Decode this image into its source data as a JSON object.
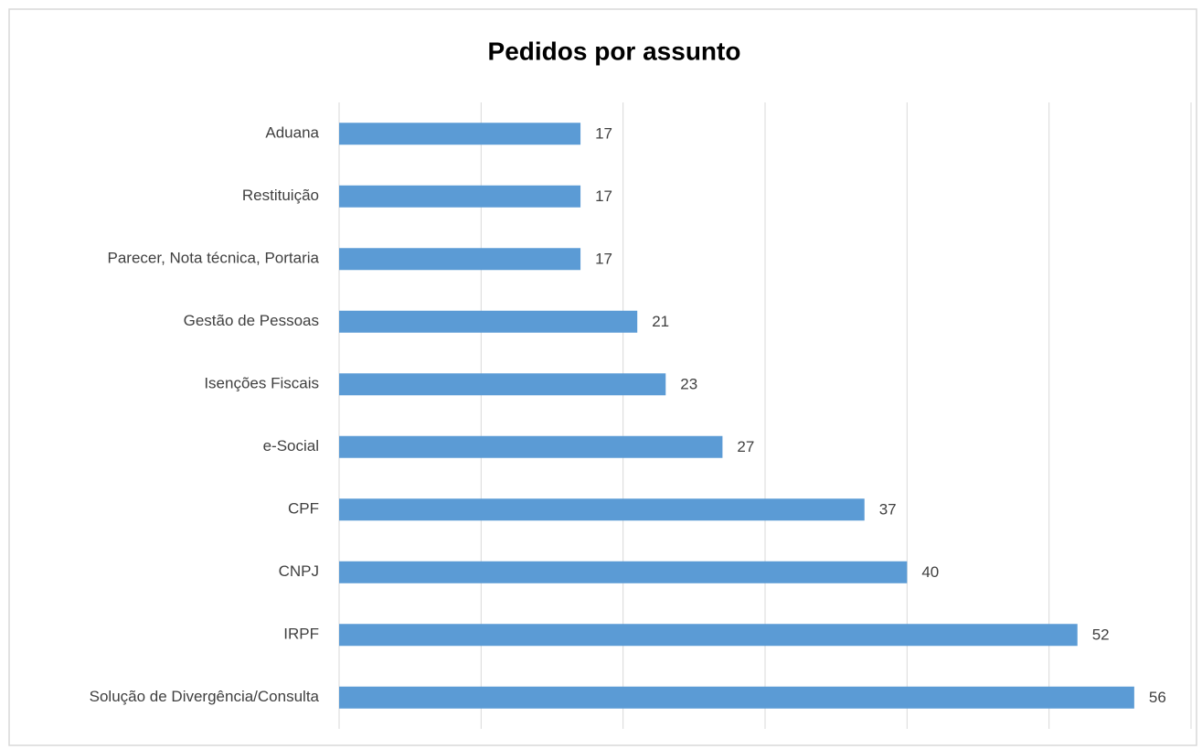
{
  "chart_data": {
    "type": "bar",
    "orientation": "horizontal",
    "title": "Pedidos por assunto",
    "categories": [
      "Aduana",
      "Restituição",
      "Parecer, Nota técnica, Portaria",
      "Gestão de Pessoas",
      "Isenções Fiscais",
      "e-Social",
      "CPF",
      "CNPJ",
      "IRPF",
      "Solução de Divergência/Consulta"
    ],
    "values": [
      17,
      17,
      17,
      21,
      23,
      27,
      37,
      40,
      52,
      56
    ],
    "color": "#5b9bd5",
    "xlim": [
      0,
      60
    ],
    "xticks": [
      0,
      10,
      20,
      30,
      40,
      50,
      60
    ],
    "grid": true
  }
}
